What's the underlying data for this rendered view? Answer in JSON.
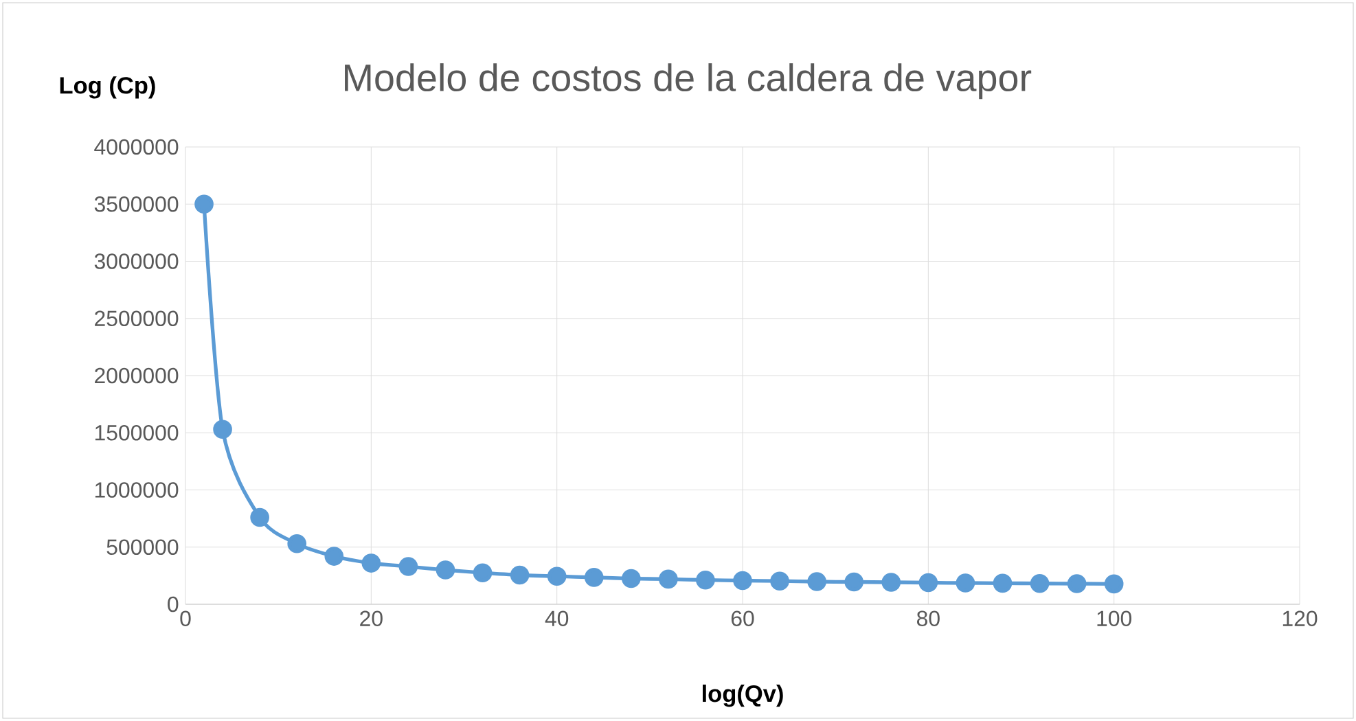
{
  "chart_data": {
    "type": "line",
    "title": "Modelo de costos de la caldera de vapor",
    "xlabel": "log(Qv)",
    "ylabel": "Log (Cp)",
    "x": [
      2,
      4,
      8,
      12,
      16,
      20,
      24,
      28,
      32,
      36,
      40,
      44,
      48,
      52,
      56,
      60,
      64,
      68,
      72,
      76,
      80,
      84,
      88,
      92,
      96,
      100
    ],
    "series": [
      {
        "color": "#5b9bd5",
        "values": [
          3500000,
          1530000,
          760000,
          530000,
          420000,
          360000,
          330000,
          300000,
          275000,
          255000,
          245000,
          235000,
          225000,
          220000,
          212000,
          207000,
          203000,
          198000,
          195000,
          192000,
          189000,
          186000,
          184000,
          182000,
          180000,
          178000
        ]
      }
    ],
    "xlim": [
      0,
      120
    ],
    "xticks": [
      0,
      20,
      40,
      60,
      80,
      100,
      120
    ],
    "ylim": [
      0,
      4000000
    ],
    "yticks": [
      0,
      500000,
      1000000,
      1500000,
      2000000,
      2500000,
      3000000,
      3500000,
      4000000
    ],
    "grid": true,
    "marker": "circle",
    "line_style": "solid"
  }
}
